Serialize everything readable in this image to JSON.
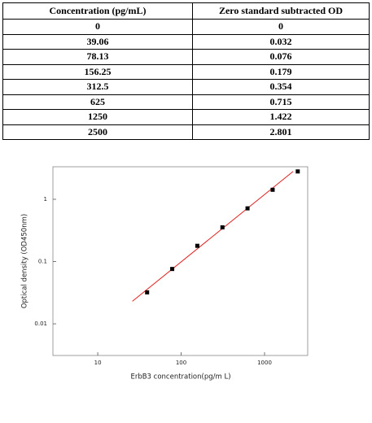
{
  "table": {
    "header": [
      "Concentration (pg/mL)",
      "Zero standard subtracted OD"
    ],
    "rows": [
      [
        "0",
        "0"
      ],
      [
        "39.06",
        "0.032"
      ],
      [
        "78.13",
        "0.076"
      ],
      [
        "156.25",
        "0.179"
      ],
      [
        "312.5",
        "0.354"
      ],
      [
        "625",
        "0.715"
      ],
      [
        "1250",
        "1.422"
      ],
      [
        "2500",
        "2.801"
      ]
    ]
  },
  "chart_data": {
    "type": "scatter",
    "x_label": "ErbB3 concentration(pg/m L)",
    "y_label": "Optical density (OD450nm)",
    "log_x": true,
    "log_y": true,
    "xlim": [
      2.9,
      3290
    ],
    "ylim": [
      0.0031,
      3.33
    ],
    "xticks": [
      10,
      100,
      1000
    ],
    "yticks": [
      0.01,
      0.1,
      1
    ],
    "points": {
      "color": "#000000",
      "x": [
        39.06,
        78.13,
        156.25,
        312.5,
        625,
        1250,
        2500
      ],
      "values": [
        0.032,
        0.076,
        0.179,
        0.354,
        0.715,
        1.422,
        2.801
      ]
    },
    "fit_line": {
      "color": "#e02020",
      "x": [
        26,
        2200
      ],
      "values": [
        0.023,
        2.8
      ]
    }
  }
}
